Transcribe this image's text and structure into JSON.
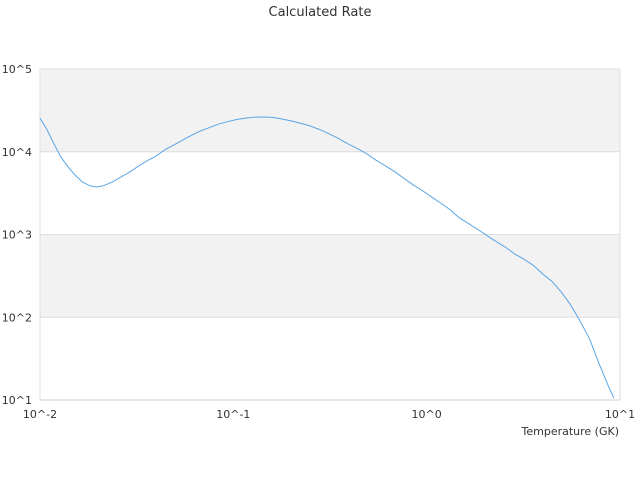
{
  "chart_data": {
    "type": "line",
    "title": "Calculated Rate",
    "xlabel": "Temperature (GK)",
    "ylabel": "",
    "x_scale": "log",
    "y_scale": "log",
    "xlim": [
      0.01,
      10
    ],
    "ylim": [
      10,
      100000
    ],
    "x_ticks": [
      {
        "value": 0.01,
        "label": "10^-2"
      },
      {
        "value": 0.1,
        "label": "10^-1"
      },
      {
        "value": 1,
        "label": "10^0"
      },
      {
        "value": 10,
        "label": "10^1"
      }
    ],
    "y_ticks": [
      {
        "value": 10,
        "label": "10^1"
      },
      {
        "value": 100,
        "label": "10^2"
      },
      {
        "value": 1000,
        "label": "10^3"
      },
      {
        "value": 10000,
        "label": "10^4"
      },
      {
        "value": 100000,
        "label": "10^5"
      }
    ],
    "band_colors": [
      "#ffffff",
      "#f2f2f2"
    ],
    "line_color": "#5aa5e6",
    "grid": true,
    "legend": "none",
    "series": [
      {
        "x": [
          0.01,
          0.0108,
          0.0118,
          0.0128,
          0.014,
          0.0152,
          0.0166,
          0.018,
          0.0195,
          0.0214,
          0.0236,
          0.026,
          0.0288,
          0.032,
          0.0356,
          0.0396,
          0.0441,
          0.049,
          0.0546,
          0.0607,
          0.0675,
          0.075,
          0.0835,
          0.093,
          0.104,
          0.116,
          0.129,
          0.144,
          0.16,
          0.18,
          0.2,
          0.224,
          0.25,
          0.28,
          0.313,
          0.35,
          0.39,
          0.436,
          0.487,
          0.544,
          0.608,
          0.68,
          0.76,
          0.848,
          0.948,
          1.06,
          1.18,
          1.32,
          1.47,
          1.65,
          1.84,
          2.05,
          2.29,
          2.56,
          2.86,
          3.2,
          3.58,
          4.0,
          4.46,
          4.98,
          5.57,
          6.22,
          6.95,
          7.77,
          8.68,
          9.3
        ],
        "y": [
          25500,
          19000,
          12500,
          8700,
          6500,
          5200,
          4300,
          3900,
          3750,
          3900,
          4300,
          4900,
          5600,
          6600,
          7700,
          8800,
          10500,
          12000,
          13800,
          15800,
          17800,
          19500,
          21500,
          23000,
          24500,
          25500,
          26200,
          26300,
          26000,
          24800,
          23500,
          22000,
          20500,
          18500,
          16500,
          14500,
          12500,
          11000,
          9500,
          8000,
          6800,
          5800,
          4800,
          4000,
          3400,
          2850,
          2400,
          2000,
          1600,
          1350,
          1150,
          970,
          820,
          700,
          580,
          500,
          420,
          330,
          270,
          200,
          140,
          90,
          55,
          28,
          15,
          10.5
        ]
      }
    ]
  }
}
